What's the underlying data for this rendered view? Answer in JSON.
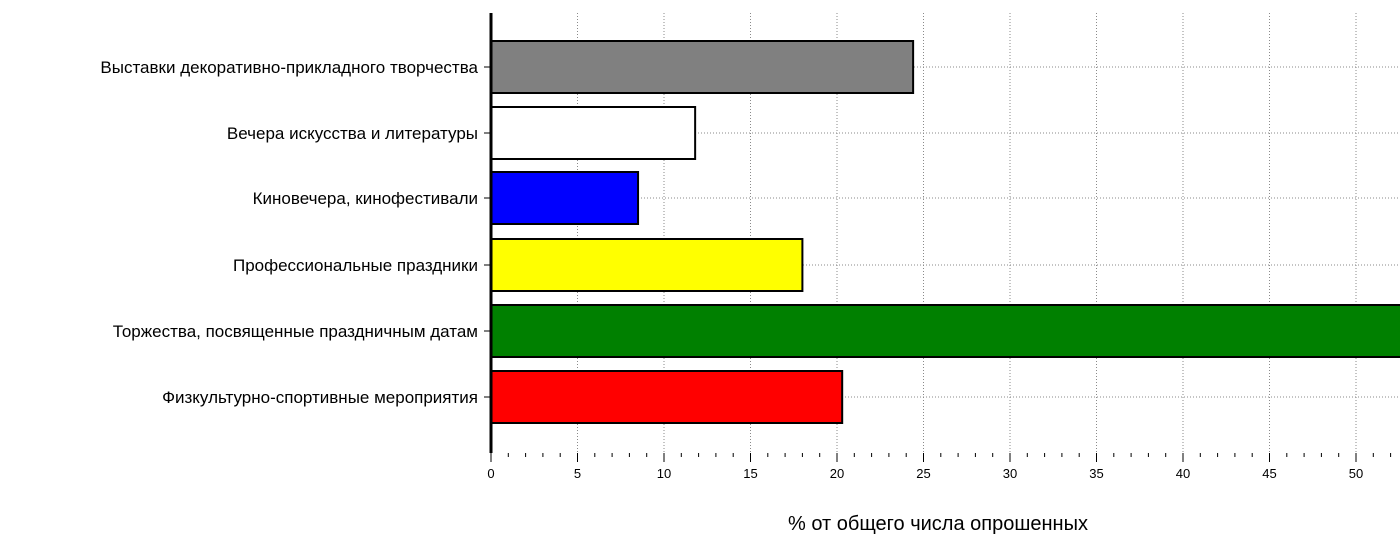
{
  "chart_data": {
    "type": "bar",
    "orientation": "horizontal",
    "categories": [
      "Выставки декоративно-прикладного творчества",
      "Вечера искусства и литературы",
      "Киновечера, кинофестивали",
      "Профессиональные праздники",
      "Торжества, посвященные праздничным датам",
      "Физкультурно-спортивные мероприятия"
    ],
    "values": [
      24.4,
      11.8,
      8.5,
      18.0,
      55.0,
      20.3
    ],
    "colors": [
      "#808080",
      "#ffffff",
      "#0000ff",
      "#ffff00",
      "#008000",
      "#ff0000"
    ],
    "xlabel": "% от общего числа опрошенных",
    "ylabel": "",
    "title": "",
    "xlim": [
      0,
      53
    ],
    "xticks": [
      0,
      5,
      10,
      15,
      20,
      25,
      30,
      35,
      40,
      45,
      50
    ],
    "grid": true,
    "legend": "none"
  }
}
